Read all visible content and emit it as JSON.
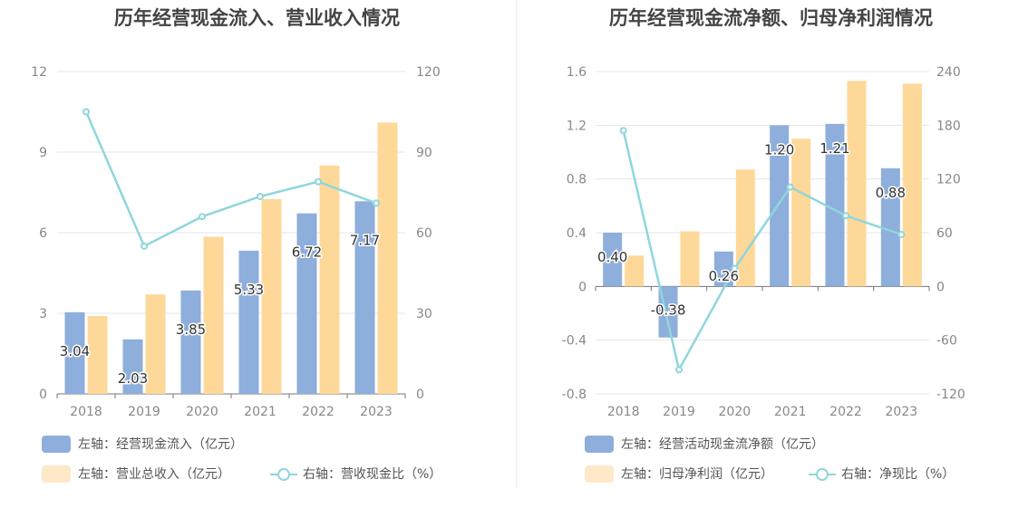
{
  "charts": [
    {
      "title": "历年经营现金流入、营业收入情况",
      "legend": {
        "bar1": "左轴：经营现金流入（亿元）",
        "bar2": "左轴：营业总收入（亿元）",
        "line": "右轴：营收现金比（%）"
      }
    },
    {
      "title": "历年经营现金流净额、归母净利润情况",
      "legend": {
        "bar1": "左轴：经营活动现金流净额（亿元）",
        "bar2": "左轴：归母净利润（亿元）",
        "line": "右轴：净现比（%）"
      }
    }
  ],
  "colors": {
    "bar1": "#8eaedb",
    "bar2": "#fed899",
    "bar2_legend": "#fde8c8",
    "line": "#8fd6db",
    "grid": "#e3e6ef",
    "tick": "#888888"
  },
  "chart_data": [
    {
      "type": "bar",
      "title": "历年经营现金流入、营业收入情况",
      "categories": [
        "2018",
        "2019",
        "2020",
        "2021",
        "2022",
        "2023"
      ],
      "left_axis": {
        "ticks": [
          "0",
          "3",
          "6",
          "9",
          "12"
        ],
        "range": [
          0,
          12
        ]
      },
      "right_axis": {
        "ticks": [
          "0",
          "30",
          "60",
          "90",
          "120"
        ],
        "range": [
          0,
          120
        ]
      },
      "series": [
        {
          "name": "左轴：经营现金流入（亿元）",
          "axis": "left",
          "kind": "bar",
          "values": [
            3.04,
            2.03,
            3.85,
            5.33,
            6.72,
            7.17
          ],
          "labels": [
            "3.04",
            "2.03",
            "3.85",
            "5.33",
            "6.72",
            "7.17"
          ]
        },
        {
          "name": "左轴：营业总收入（亿元）",
          "axis": "left",
          "kind": "bar",
          "values": [
            2.9,
            3.7,
            5.85,
            7.25,
            8.5,
            10.1
          ]
        },
        {
          "name": "右轴：营收现金比（%）",
          "axis": "right",
          "kind": "line",
          "values": [
            105,
            55,
            66,
            73.5,
            79,
            71
          ]
        }
      ]
    },
    {
      "type": "bar",
      "title": "历年经营现金流净额、归母净利润情况",
      "categories": [
        "2018",
        "2019",
        "2020",
        "2021",
        "2022",
        "2023"
      ],
      "left_axis": {
        "ticks": [
          "-0.8",
          "-0.4",
          "0",
          "0.4",
          "0.8",
          "1.2",
          "1.6"
        ],
        "range": [
          -0.8,
          1.6
        ]
      },
      "right_axis": {
        "ticks": [
          "-120",
          "-60",
          "0",
          "60",
          "120",
          "180",
          "240"
        ],
        "range": [
          -120,
          240
        ]
      },
      "series": [
        {
          "name": "左轴：经营活动现金流净额（亿元）",
          "axis": "left",
          "kind": "bar",
          "values": [
            0.4,
            -0.38,
            0.26,
            1.2,
            1.21,
            0.88
          ],
          "labels": [
            "0.40",
            "-0.38",
            "0.26",
            "1.20",
            "1.21",
            "0.88"
          ]
        },
        {
          "name": "左轴：归母净利润（亿元）",
          "axis": "left",
          "kind": "bar",
          "values": [
            0.23,
            0.41,
            0.87,
            1.1,
            1.53,
            1.51
          ]
        },
        {
          "name": "右轴：净现比（%）",
          "axis": "right",
          "kind": "line",
          "values": [
            174,
            -93,
            20,
            111,
            79,
            58
          ]
        }
      ]
    }
  ]
}
